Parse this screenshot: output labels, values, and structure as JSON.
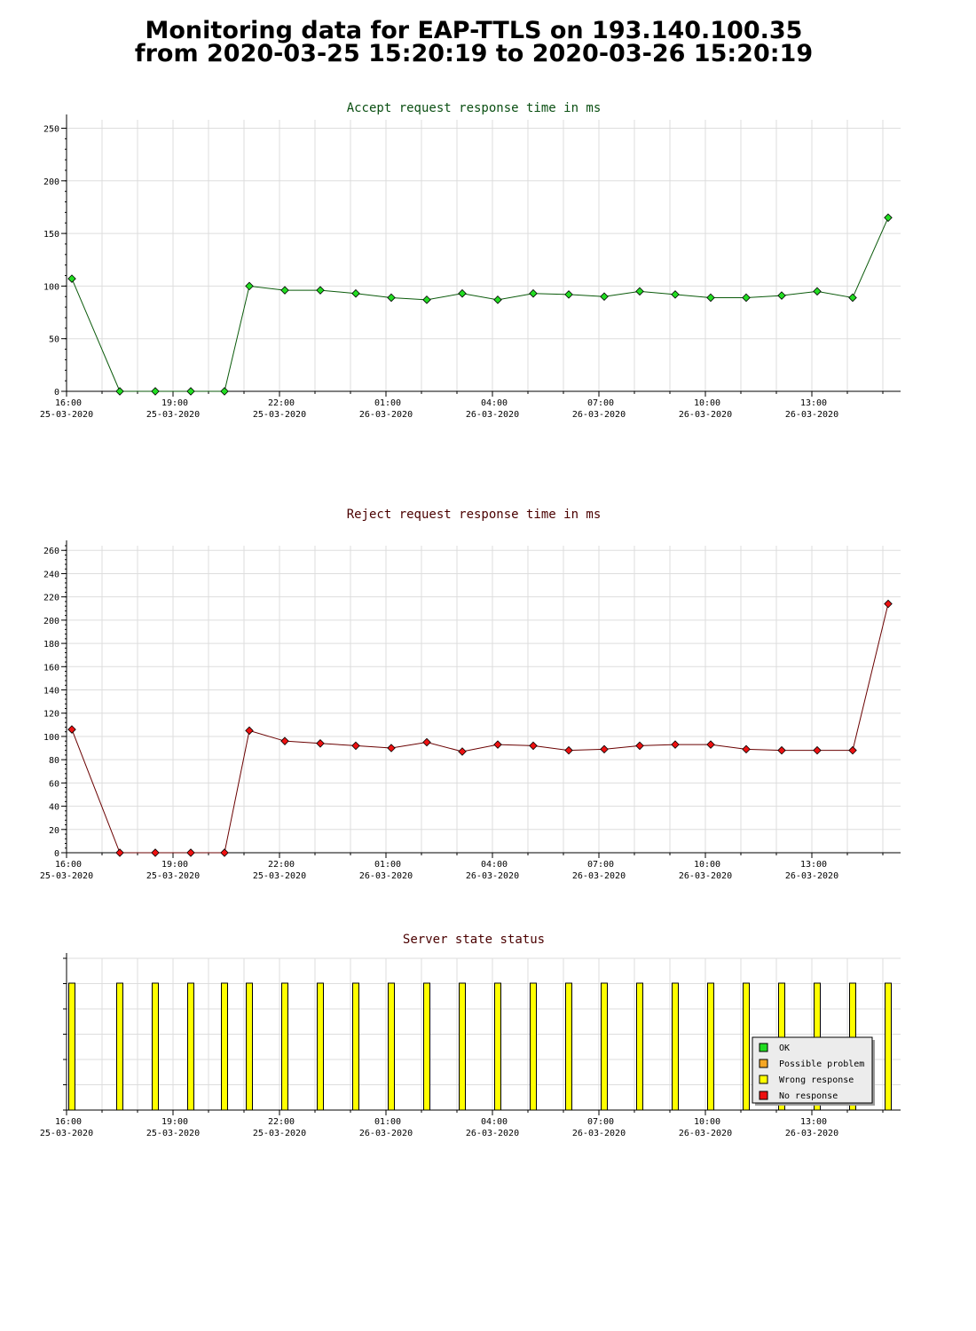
{
  "header": {
    "line1": "Monitoring data for EAP-TTLS on 193.140.100.35",
    "line2": "from 2020-03-25 15:20:19 to 2020-03-26 15:20:19"
  },
  "colors": {
    "accept_title": "#0a4f12",
    "reject_title": "#4a0000",
    "status_title": "#4a0000",
    "accept_series": "#22dd22",
    "accept_line": "#0a5a0a",
    "reject_series": "#ee1111",
    "reject_line": "#6a0000",
    "ok": "#22dd22",
    "possible_problem": "#f5a623",
    "wrong_response": "#ffff00",
    "no_response": "#ee1111",
    "grid": "#dddddd"
  },
  "time_axis": {
    "tick_hours": [
      0,
      3,
      6,
      9,
      12,
      15,
      18,
      21
    ],
    "tick_time_labels": [
      "16:00",
      "19:00",
      "22:00",
      "01:00",
      "04:00",
      "07:00",
      "10:00",
      "13:00"
    ],
    "tick_date_labels": [
      "25-03-2020",
      "25-03-2020",
      "25-03-2020",
      "26-03-2020",
      "26-03-2020",
      "26-03-2020",
      "26-03-2020",
      "26-03-2020"
    ],
    "range_hours": [
      0,
      23.5
    ]
  },
  "chart_data": [
    {
      "type": "line",
      "title": "Accept request response time in ms",
      "xlabel": "",
      "ylabel": "",
      "ylim": [
        0,
        258
      ],
      "y_ticks": [
        0,
        50,
        100,
        150,
        200,
        250
      ],
      "grid": true,
      "x_hours": [
        0.15,
        1.5,
        2.5,
        3.5,
        4.45,
        5.15,
        6.15,
        7.15,
        8.15,
        9.15,
        10.15,
        11.15,
        12.15,
        13.15,
        14.15,
        15.15,
        16.15,
        17.15,
        18.15,
        19.15,
        20.15,
        21.15,
        22.15,
        23.15
      ],
      "series": [
        {
          "values": [
            107,
            0,
            0,
            0,
            0,
            100,
            96,
            96,
            93,
            89,
            87,
            93,
            87,
            93,
            92,
            90,
            95,
            92,
            89,
            89,
            91,
            95,
            89,
            165
          ]
        }
      ]
    },
    {
      "type": "line",
      "title": "Reject request response time in ms",
      "xlabel": "",
      "ylabel": "",
      "ylim": [
        0,
        264
      ],
      "y_ticks": [
        0,
        20,
        40,
        60,
        80,
        100,
        120,
        140,
        160,
        180,
        200,
        220,
        240,
        260
      ],
      "grid": true,
      "x_hours": [
        0.15,
        1.5,
        2.5,
        3.5,
        4.45,
        5.15,
        6.15,
        7.15,
        8.15,
        9.15,
        10.15,
        11.15,
        12.15,
        13.15,
        14.15,
        15.15,
        16.15,
        17.15,
        18.15,
        19.15,
        20.15,
        21.15,
        22.15,
        23.15
      ],
      "series": [
        {
          "values": [
            106,
            0,
            0,
            0,
            0,
            105,
            96,
            94,
            92,
            90,
            95,
            87,
            93,
            92,
            88,
            89,
            92,
            93,
            93,
            89,
            88,
            88,
            88,
            214
          ]
        }
      ]
    },
    {
      "type": "bar",
      "title": "Server state status",
      "xlabel": "",
      "ylabel": "",
      "grid": true,
      "legend_position": "bottom-right",
      "legend": [
        {
          "label": "OK",
          "color": "#22dd22"
        },
        {
          "label": "Possible problem",
          "color": "#f5a623"
        },
        {
          "label": "Wrong response",
          "color": "#ffff00"
        },
        {
          "label": "No response",
          "color": "#ee1111"
        }
      ],
      "x_hours": [
        0.15,
        1.5,
        2.5,
        3.5,
        4.45,
        5.15,
        6.15,
        7.15,
        8.15,
        9.15,
        10.15,
        11.15,
        12.15,
        13.15,
        14.15,
        15.15,
        16.15,
        17.15,
        18.15,
        19.15,
        20.15,
        21.15,
        22.15,
        23.15
      ],
      "states": [
        "Wrong response",
        "Wrong response",
        "Wrong response",
        "Wrong response",
        "Wrong response",
        "Wrong response",
        "Wrong response",
        "Wrong response",
        "Wrong response",
        "Wrong response",
        "Wrong response",
        "Wrong response",
        "Wrong response",
        "Wrong response",
        "Wrong response",
        "Wrong response",
        "Wrong response",
        "Wrong response",
        "Wrong response",
        "Wrong response",
        "Wrong response",
        "Wrong response",
        "Wrong response",
        "Wrong response"
      ]
    }
  ]
}
